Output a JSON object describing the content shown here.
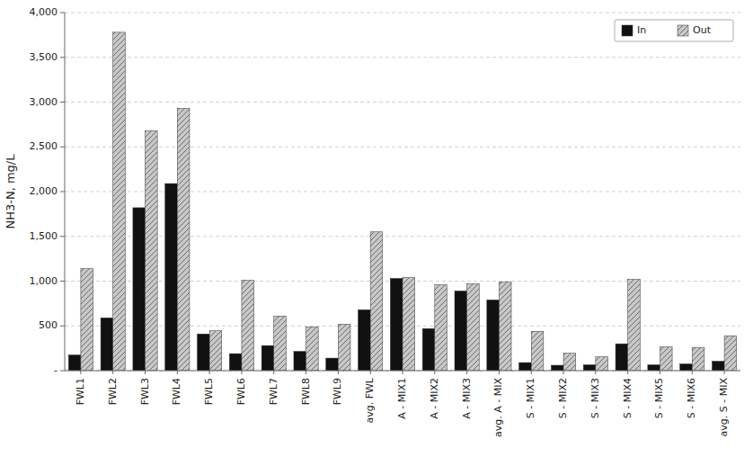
{
  "chart_data": {
    "type": "bar",
    "ylabel": "NH3-N, mg/L",
    "categories": [
      "FWL1",
      "FWL2",
      "FWL3",
      "FWL4",
      "FWL5",
      "FWL6",
      "FWL7",
      "FWL8",
      "FWL9",
      "avg. FWL",
      "A - MIX1",
      "A - MIX2",
      "A - MIX3",
      "avg. A - MIX",
      "S - MIX1",
      "S - MIX2",
      "S - MIX3",
      "S - MIX4",
      "S - MIX5",
      "S - MIX6",
      "avg. S - MIX"
    ],
    "series": [
      {
        "name": "In",
        "color": "#111111",
        "values": [
          175,
          590,
          1820,
          2090,
          410,
          190,
          280,
          215,
          140,
          680,
          1030,
          470,
          890,
          790,
          90,
          60,
          65,
          300,
          65,
          75,
          105
        ]
      },
      {
        "name": "Out",
        "color": "#c8c8c8",
        "values": [
          1140,
          3780,
          2680,
          2930,
          445,
          1010,
          610,
          490,
          520,
          1550,
          1040,
          960,
          970,
          990,
          440,
          195,
          155,
          1020,
          265,
          260,
          390
        ]
      }
    ],
    "ylim": [
      0,
      4000
    ],
    "yticks": [
      {
        "value": 0,
        "label": "-"
      },
      500,
      {
        "value": 1000,
        "label": "1,000"
      },
      {
        "value": 1500,
        "label": "1,500"
      },
      {
        "value": 2000,
        "label": "2,000"
      },
      {
        "value": 2500,
        "label": "2,500"
      },
      {
        "value": 3000,
        "label": "3,000"
      },
      {
        "value": 3500,
        "label": "3,500"
      },
      {
        "value": 4000,
        "label": "4,000"
      }
    ],
    "grid": true,
    "legend": "upper right"
  }
}
